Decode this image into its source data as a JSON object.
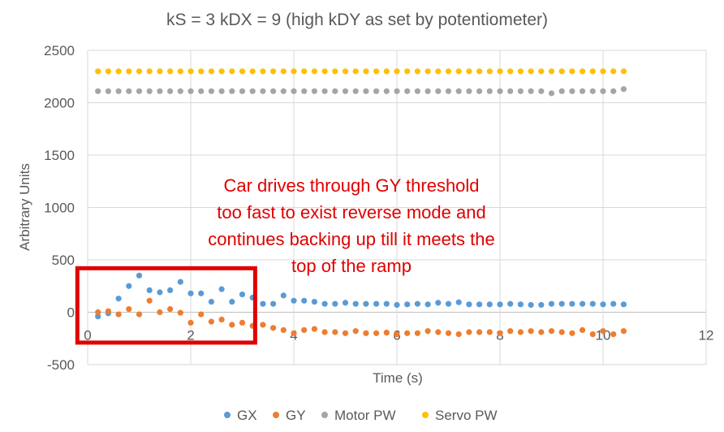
{
  "chart_data": {
    "type": "scatter",
    "title": "kS = 3 kDX = 9 (high kDY as set by potentiometer)",
    "xlabel": "Time (s)",
    "ylabel": "Arbitrary Units",
    "xlim": [
      0,
      12
    ],
    "ylim": [
      -500,
      2500
    ],
    "x_ticks": [
      0,
      2,
      4,
      6,
      8,
      10,
      12
    ],
    "y_ticks": [
      -500,
      0,
      500,
      1000,
      1500,
      2000,
      2500
    ],
    "x_tick_labels": [
      "0",
      "2",
      "4",
      "6",
      "8",
      "10",
      "12"
    ],
    "y_tick_labels": [
      "-500",
      "0",
      "500",
      "1000",
      "1500",
      "2000",
      "2500"
    ],
    "grid": true,
    "legend_position": "bottom",
    "series": [
      {
        "name": "GX",
        "color": "#5b9bd5",
        "points": [
          [
            0.2,
            -40
          ],
          [
            0.4,
            -10
          ],
          [
            0.6,
            130
          ],
          [
            0.8,
            250
          ],
          [
            1.0,
            350
          ],
          [
            1.2,
            210
          ],
          [
            1.4,
            190
          ],
          [
            1.6,
            210
          ],
          [
            1.8,
            290
          ],
          [
            2.0,
            180
          ],
          [
            2.2,
            180
          ],
          [
            2.4,
            100
          ],
          [
            2.6,
            220
          ],
          [
            2.8,
            100
          ],
          [
            3.0,
            170
          ],
          [
            3.2,
            140
          ],
          [
            3.4,
            80
          ],
          [
            3.6,
            80
          ],
          [
            3.8,
            160
          ],
          [
            4.0,
            110
          ],
          [
            4.2,
            110
          ],
          [
            4.4,
            100
          ],
          [
            4.6,
            80
          ],
          [
            4.8,
            80
          ],
          [
            5.0,
            90
          ],
          [
            5.2,
            80
          ],
          [
            5.4,
            80
          ],
          [
            5.6,
            80
          ],
          [
            5.8,
            80
          ],
          [
            6.0,
            70
          ],
          [
            6.2,
            75
          ],
          [
            6.4,
            80
          ],
          [
            6.6,
            75
          ],
          [
            6.8,
            90
          ],
          [
            7.0,
            80
          ],
          [
            7.2,
            95
          ],
          [
            7.4,
            75
          ],
          [
            7.6,
            75
          ],
          [
            7.8,
            75
          ],
          [
            8.0,
            75
          ],
          [
            8.2,
            80
          ],
          [
            8.4,
            75
          ],
          [
            8.6,
            70
          ],
          [
            8.8,
            70
          ],
          [
            9.0,
            80
          ],
          [
            9.2,
            80
          ],
          [
            9.4,
            80
          ],
          [
            9.6,
            80
          ],
          [
            9.8,
            80
          ],
          [
            10.0,
            75
          ],
          [
            10.2,
            80
          ],
          [
            10.4,
            75
          ]
        ]
      },
      {
        "name": "GY",
        "color": "#ed7d31",
        "points": [
          [
            0.2,
            0
          ],
          [
            0.4,
            10
          ],
          [
            0.6,
            -20
          ],
          [
            0.8,
            30
          ],
          [
            1.0,
            -20
          ],
          [
            1.2,
            110
          ],
          [
            1.4,
            0
          ],
          [
            1.6,
            30
          ],
          [
            1.8,
            -5
          ],
          [
            2.0,
            -100
          ],
          [
            2.2,
            -20
          ],
          [
            2.4,
            -90
          ],
          [
            2.6,
            -70
          ],
          [
            2.8,
            -120
          ],
          [
            3.0,
            -100
          ],
          [
            3.2,
            -130
          ],
          [
            3.4,
            -120
          ],
          [
            3.6,
            -150
          ],
          [
            3.8,
            -170
          ],
          [
            4.0,
            -200
          ],
          [
            4.2,
            -170
          ],
          [
            4.4,
            -160
          ],
          [
            4.6,
            -190
          ],
          [
            4.8,
            -190
          ],
          [
            5.0,
            -200
          ],
          [
            5.2,
            -180
          ],
          [
            5.4,
            -200
          ],
          [
            5.6,
            -200
          ],
          [
            5.8,
            -195
          ],
          [
            6.0,
            -210
          ],
          [
            6.2,
            -200
          ],
          [
            6.4,
            -200
          ],
          [
            6.6,
            -180
          ],
          [
            6.8,
            -190
          ],
          [
            7.0,
            -200
          ],
          [
            7.2,
            -210
          ],
          [
            7.4,
            -190
          ],
          [
            7.6,
            -190
          ],
          [
            7.8,
            -190
          ],
          [
            8.0,
            -200
          ],
          [
            8.2,
            -180
          ],
          [
            8.4,
            -190
          ],
          [
            8.6,
            -180
          ],
          [
            8.8,
            -190
          ],
          [
            9.0,
            -180
          ],
          [
            9.2,
            -190
          ],
          [
            9.4,
            -200
          ],
          [
            9.6,
            -170
          ],
          [
            9.8,
            -210
          ],
          [
            10.0,
            -180
          ],
          [
            10.2,
            -210
          ],
          [
            10.4,
            -180
          ]
        ]
      },
      {
        "name": "Motor PW",
        "color": "#a5a5a5",
        "points": [
          [
            0.2,
            2110
          ],
          [
            0.4,
            2110
          ],
          [
            0.6,
            2110
          ],
          [
            0.8,
            2110
          ],
          [
            1.0,
            2110
          ],
          [
            1.2,
            2110
          ],
          [
            1.4,
            2110
          ],
          [
            1.6,
            2110
          ],
          [
            1.8,
            2110
          ],
          [
            2.0,
            2110
          ],
          [
            2.2,
            2110
          ],
          [
            2.4,
            2110
          ],
          [
            2.6,
            2110
          ],
          [
            2.8,
            2110
          ],
          [
            3.0,
            2110
          ],
          [
            3.2,
            2110
          ],
          [
            3.4,
            2110
          ],
          [
            3.6,
            2110
          ],
          [
            3.8,
            2110
          ],
          [
            4.0,
            2110
          ],
          [
            4.2,
            2110
          ],
          [
            4.4,
            2110
          ],
          [
            4.6,
            2110
          ],
          [
            4.8,
            2110
          ],
          [
            5.0,
            2110
          ],
          [
            5.2,
            2110
          ],
          [
            5.4,
            2110
          ],
          [
            5.6,
            2110
          ],
          [
            5.8,
            2110
          ],
          [
            6.0,
            2110
          ],
          [
            6.2,
            2110
          ],
          [
            6.4,
            2110
          ],
          [
            6.6,
            2110
          ],
          [
            6.8,
            2110
          ],
          [
            7.0,
            2110
          ],
          [
            7.2,
            2110
          ],
          [
            7.4,
            2110
          ],
          [
            7.6,
            2110
          ],
          [
            7.8,
            2110
          ],
          [
            8.0,
            2110
          ],
          [
            8.2,
            2110
          ],
          [
            8.4,
            2110
          ],
          [
            8.6,
            2110
          ],
          [
            8.8,
            2110
          ],
          [
            9.0,
            2090
          ],
          [
            9.2,
            2110
          ],
          [
            9.4,
            2110
          ],
          [
            9.6,
            2110
          ],
          [
            9.8,
            2110
          ],
          [
            10.0,
            2110
          ],
          [
            10.2,
            2110
          ],
          [
            10.4,
            2130
          ]
        ]
      },
      {
        "name": "Servo PW",
        "color": "#ffc000",
        "points": [
          [
            0.2,
            2300
          ],
          [
            0.4,
            2300
          ],
          [
            0.6,
            2300
          ],
          [
            0.8,
            2300
          ],
          [
            1.0,
            2300
          ],
          [
            1.2,
            2300
          ],
          [
            1.4,
            2300
          ],
          [
            1.6,
            2300
          ],
          [
            1.8,
            2300
          ],
          [
            2.0,
            2300
          ],
          [
            2.2,
            2300
          ],
          [
            2.4,
            2300
          ],
          [
            2.6,
            2300
          ],
          [
            2.8,
            2300
          ],
          [
            3.0,
            2300
          ],
          [
            3.2,
            2300
          ],
          [
            3.4,
            2300
          ],
          [
            3.6,
            2300
          ],
          [
            3.8,
            2300
          ],
          [
            4.0,
            2300
          ],
          [
            4.2,
            2300
          ],
          [
            4.4,
            2300
          ],
          [
            4.6,
            2300
          ],
          [
            4.8,
            2300
          ],
          [
            5.0,
            2300
          ],
          [
            5.2,
            2300
          ],
          [
            5.4,
            2300
          ],
          [
            5.6,
            2300
          ],
          [
            5.8,
            2300
          ],
          [
            6.0,
            2300
          ],
          [
            6.2,
            2300
          ],
          [
            6.4,
            2300
          ],
          [
            6.6,
            2300
          ],
          [
            6.8,
            2300
          ],
          [
            7.0,
            2300
          ],
          [
            7.2,
            2300
          ],
          [
            7.4,
            2300
          ],
          [
            7.6,
            2300
          ],
          [
            7.8,
            2300
          ],
          [
            8.0,
            2300
          ],
          [
            8.2,
            2300
          ],
          [
            8.4,
            2300
          ],
          [
            8.6,
            2300
          ],
          [
            8.8,
            2300
          ],
          [
            9.0,
            2300
          ],
          [
            9.2,
            2300
          ],
          [
            9.4,
            2300
          ],
          [
            9.6,
            2300
          ],
          [
            9.8,
            2300
          ],
          [
            10.0,
            2300
          ],
          [
            10.2,
            2300
          ],
          [
            10.4,
            2300
          ]
        ]
      }
    ],
    "annotation": {
      "lines": [
        "Car drives through GY threshold",
        "too fast to exist reverse mode and",
        "continues backing up till it meets the",
        "top of the ramp"
      ],
      "color": "#e00000"
    },
    "highlight_box": {
      "x_range": [
        -0.2,
        3.25
      ],
      "y_range": [
        -290,
        420
      ],
      "color": "#e00000"
    },
    "colors": {
      "grid": "#d9d9d9",
      "text": "#595959",
      "axis": "#bfbfbf"
    }
  }
}
